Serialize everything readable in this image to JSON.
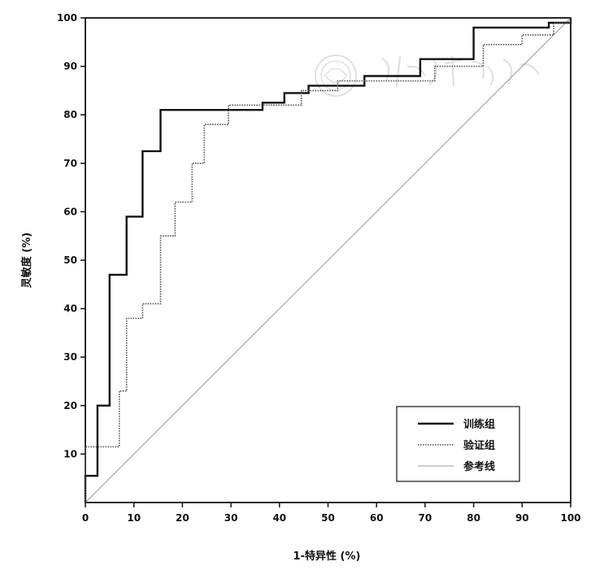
{
  "chart_data": {
    "type": "line",
    "title": "",
    "xlabel": "1-特异性 (%)",
    "ylabel": "灵敏度 (%)",
    "xlim": [
      0,
      100
    ],
    "ylim": [
      0,
      100
    ],
    "x_ticks": [
      "0",
      "10",
      "20",
      "30",
      "40",
      "50",
      "60",
      "70",
      "80",
      "90",
      "100"
    ],
    "y_ticks": [
      "10",
      "20",
      "30",
      "40",
      "50",
      "60",
      "70",
      "80",
      "90",
      "100"
    ],
    "grid": false,
    "legend_position": "bottom-right",
    "series": [
      {
        "name": "训练组",
        "style": "solid-thick",
        "color": "#111111",
        "points": [
          [
            0,
            0
          ],
          [
            0,
            5.5
          ],
          [
            2.5,
            5.5
          ],
          [
            2.5,
            20
          ],
          [
            5,
            20
          ],
          [
            5,
            47
          ],
          [
            8.5,
            47
          ],
          [
            8.5,
            59
          ],
          [
            11.8,
            59
          ],
          [
            11.8,
            72.5
          ],
          [
            15.5,
            72.5
          ],
          [
            15.5,
            81
          ],
          [
            36.5,
            81
          ],
          [
            36.5,
            82.5
          ],
          [
            41,
            82.5
          ],
          [
            41,
            84.5
          ],
          [
            46,
            84.5
          ],
          [
            46,
            86
          ],
          [
            57.5,
            86
          ],
          [
            57.5,
            88
          ],
          [
            69,
            88
          ],
          [
            69,
            91.5
          ],
          [
            80,
            91.5
          ],
          [
            80,
            98
          ],
          [
            95.5,
            98
          ],
          [
            95.5,
            99
          ],
          [
            100,
            99
          ],
          [
            100,
            100
          ]
        ]
      },
      {
        "name": "验证组",
        "style": "dotted",
        "color": "#555555",
        "points": [
          [
            0,
            0
          ],
          [
            0,
            11.5
          ],
          [
            7,
            11.5
          ],
          [
            7,
            23
          ],
          [
            8.5,
            23
          ],
          [
            8.5,
            38
          ],
          [
            11.8,
            38
          ],
          [
            11.8,
            41
          ],
          [
            15.5,
            41
          ],
          [
            15.5,
            55
          ],
          [
            18.5,
            55
          ],
          [
            18.5,
            62
          ],
          [
            22,
            62
          ],
          [
            22,
            70
          ],
          [
            24.5,
            70
          ],
          [
            24.5,
            78
          ],
          [
            29.5,
            78
          ],
          [
            29.5,
            82
          ],
          [
            44.5,
            82
          ],
          [
            44.5,
            85
          ],
          [
            52,
            85
          ],
          [
            52,
            87
          ],
          [
            72,
            87
          ],
          [
            72,
            90
          ],
          [
            82,
            90
          ],
          [
            82,
            94.5
          ],
          [
            90,
            94.5
          ],
          [
            90,
            96.5
          ],
          [
            96.5,
            96.5
          ],
          [
            96.5,
            99
          ],
          [
            100,
            99
          ],
          [
            100,
            100
          ]
        ]
      },
      {
        "name": "参考线",
        "style": "thin",
        "color": "#9a9a9a",
        "points": [
          [
            0,
            0
          ],
          [
            100,
            100
          ]
        ]
      }
    ]
  }
}
